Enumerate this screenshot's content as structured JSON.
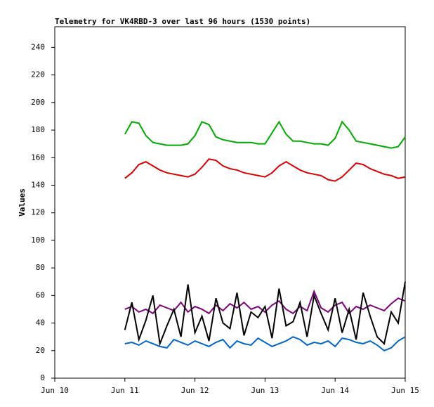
{
  "chart_data": {
    "type": "line",
    "title": "Telemetry for VK4RBD-3 over last 96 hours (1530 points)",
    "ylabel": "Values",
    "x": [
      11.0,
      11.1,
      11.2,
      11.3,
      11.4,
      11.5,
      11.6,
      11.7,
      11.8,
      11.9,
      12.0,
      12.1,
      12.2,
      12.3,
      12.4,
      12.5,
      12.6,
      12.7,
      12.8,
      12.9,
      13.0,
      13.1,
      13.2,
      13.3,
      13.4,
      13.5,
      13.6,
      13.7,
      13.8,
      13.9,
      14.0,
      14.1,
      14.2,
      14.3,
      14.4,
      14.5,
      14.6,
      14.7,
      14.8,
      14.9,
      15.0
    ],
    "series": [
      {
        "color": "#00aa00",
        "values": [
          177,
          186,
          185,
          176,
          171,
          170,
          169,
          169,
          169,
          170,
          176,
          186,
          184,
          175,
          173,
          172,
          171,
          171,
          171,
          170,
          170,
          178,
          186,
          177,
          172,
          172,
          171,
          170,
          170,
          169,
          174,
          186,
          180,
          172,
          171,
          170,
          169,
          168,
          167,
          168,
          175
        ]
      },
      {
        "color": "#dd0000",
        "values": [
          145,
          149,
          155,
          157,
          154,
          151,
          149,
          148,
          147,
          146,
          148,
          153,
          159,
          158,
          154,
          152,
          151,
          149,
          148,
          147,
          146,
          149,
          154,
          157,
          154,
          151,
          149,
          148,
          147,
          144,
          143,
          146,
          151,
          156,
          155,
          152,
          150,
          148,
          147,
          145,
          146
        ]
      },
      {
        "color": "#800080",
        "values": [
          50,
          52,
          48,
          50,
          47,
          53,
          51,
          49,
          55,
          48,
          52,
          50,
          47,
          53,
          49,
          54,
          51,
          55,
          50,
          52,
          48,
          53,
          56,
          50,
          47,
          52,
          49,
          63,
          51,
          48,
          53,
          55,
          47,
          52,
          50,
          53,
          51,
          49,
          54,
          58,
          56
        ]
      },
      {
        "color": "#0066cc",
        "values": [
          25,
          26,
          24,
          27,
          25,
          23,
          22,
          28,
          26,
          24,
          27,
          25,
          23,
          26,
          28,
          22,
          27,
          25,
          24,
          29,
          26,
          23,
          25,
          27,
          30,
          28,
          24,
          26,
          25,
          27,
          23,
          29,
          28,
          26,
          25,
          27,
          24,
          20,
          22,
          27,
          30
        ]
      },
      {
        "color": "#000000",
        "values": [
          35,
          55,
          28,
          42,
          60,
          25,
          38,
          50,
          30,
          68,
          33,
          45,
          27,
          58,
          40,
          36,
          62,
          31,
          48,
          44,
          52,
          29,
          65,
          38,
          41,
          55,
          30,
          60,
          47,
          35,
          58,
          33,
          50,
          28,
          62,
          45,
          30,
          25,
          48,
          40,
          70
        ]
      }
    ],
    "xlim": [
      10,
      15
    ],
    "xticks": [
      {
        "value": 10,
        "label": "Jun 10"
      },
      {
        "value": 11,
        "label": "Jun 11"
      },
      {
        "value": 12,
        "label": "Jun 12"
      },
      {
        "value": 13,
        "label": "Jun 13"
      },
      {
        "value": 14,
        "label": "Jun 14"
      },
      {
        "value": 15,
        "label": "Jun 15"
      }
    ],
    "ylim": [
      0,
      255
    ],
    "yticks": [
      0,
      20,
      40,
      60,
      80,
      100,
      120,
      140,
      160,
      180,
      200,
      220,
      240
    ]
  }
}
